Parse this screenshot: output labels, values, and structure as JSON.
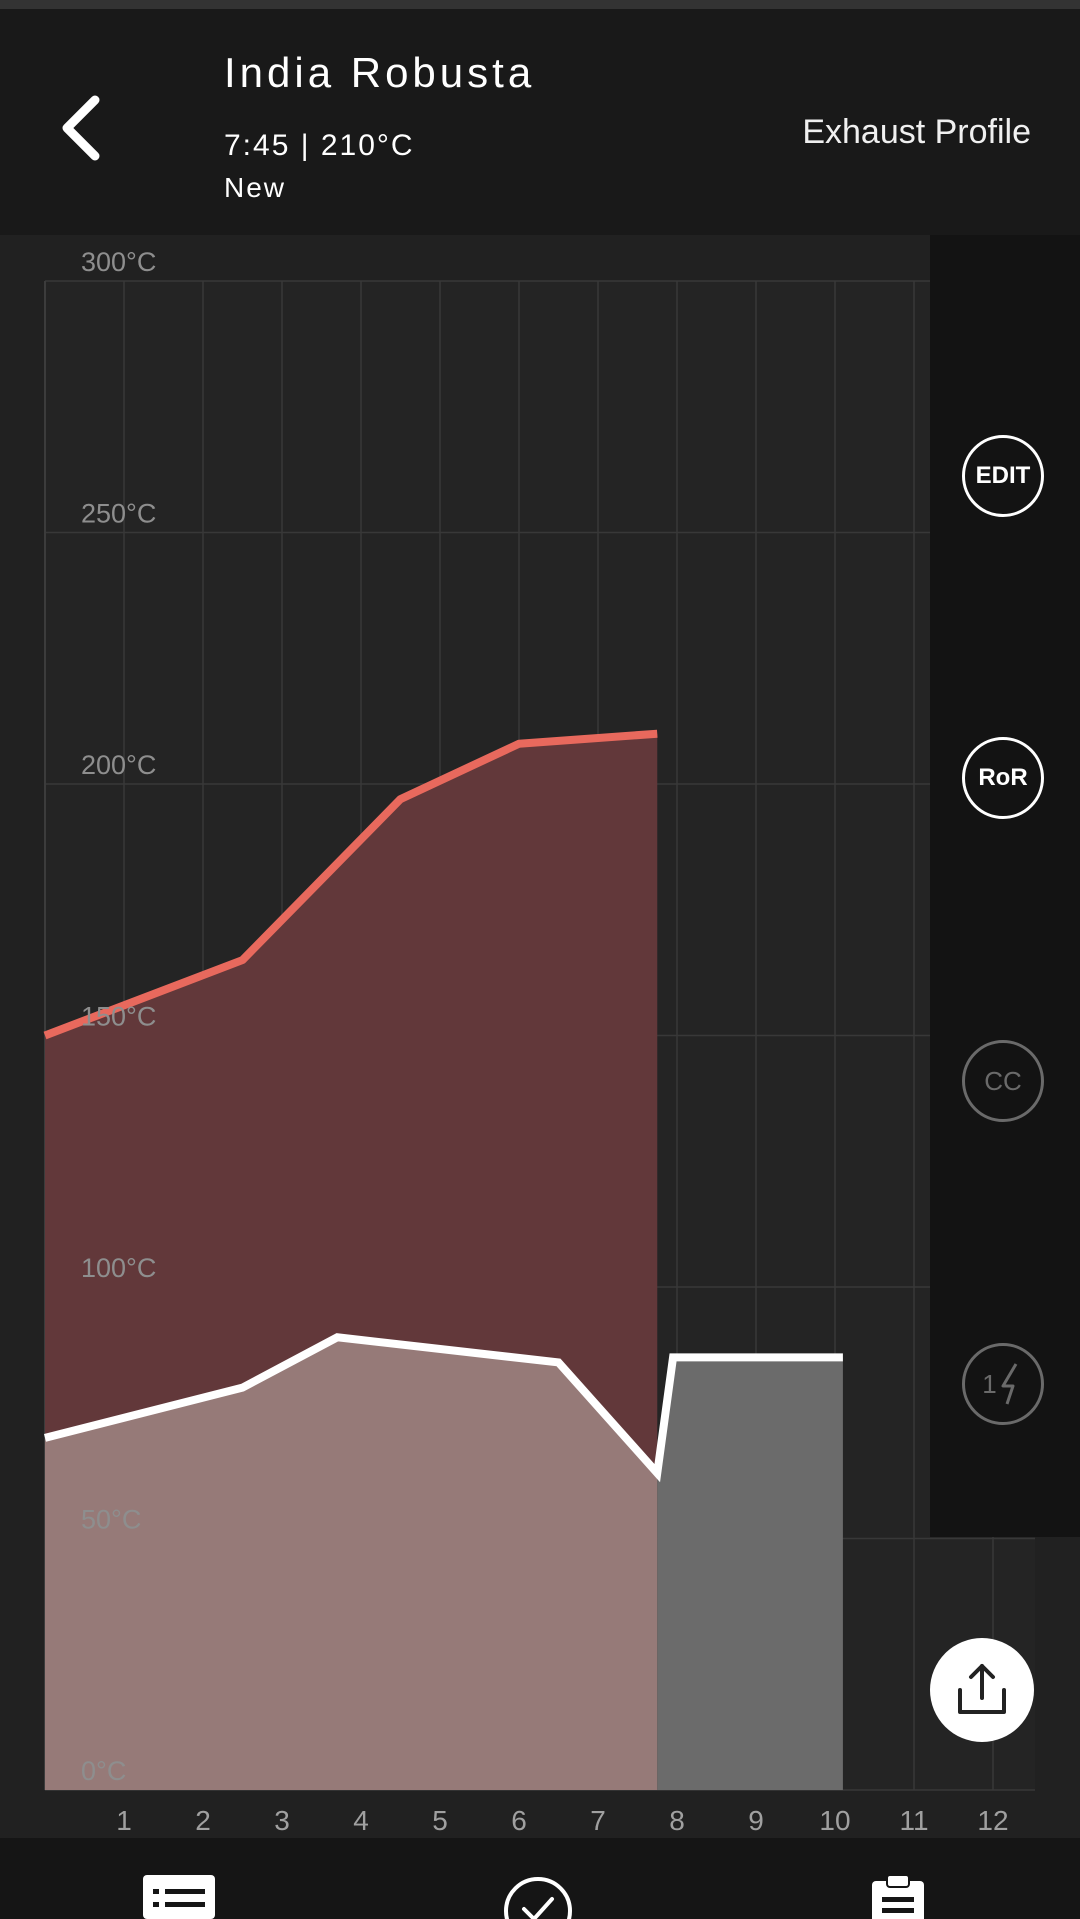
{
  "header": {
    "title": "India Robusta",
    "subtitle": "7:45 | 210°C",
    "status": "New",
    "profile_label": "Exhaust Profile",
    "back_icon": "chevron-left-icon"
  },
  "side_buttons": [
    {
      "label": "EDIT",
      "enabled": true
    },
    {
      "label": "RoR",
      "enabled": true
    },
    {
      "label": "CC",
      "enabled": false
    },
    {
      "label": "1",
      "icon": "lightning-icon",
      "enabled": false
    }
  ],
  "share_icon": "share-upload-icon",
  "bottom_nav": [
    {
      "icon": "list-icon"
    },
    {
      "icon": "check-circle-icon"
    },
    {
      "icon": "clipboard-icon"
    }
  ],
  "colors": {
    "background": "#212121",
    "bean_line": "#e8695d",
    "bean_fill": "#62383a",
    "exhaust_line": "#ffffff",
    "exhaust_fill_roasted": "#967a78",
    "exhaust_fill_future": "#6b6b6b"
  },
  "chart_data": {
    "type": "area",
    "xlim": [
      0,
      12.5
    ],
    "ylim": [
      0,
      300
    ],
    "x_ticks": [
      1,
      2,
      3,
      4,
      5,
      6,
      7,
      8,
      9,
      10,
      11,
      12
    ],
    "y_ticks": [
      0,
      50,
      100,
      150,
      200,
      250,
      300
    ],
    "y_tick_labels": [
      "0°C",
      "50°C",
      "100°C",
      "150°C",
      "200°C",
      "250°C",
      "300°C"
    ],
    "grid": true,
    "series": [
      {
        "x": [
          0,
          2.5,
          4.5,
          6,
          7.75
        ],
        "y": [
          150,
          165,
          197,
          208,
          210
        ]
      },
      {
        "x": [
          0,
          2.5,
          3.7,
          6.5,
          7.75,
          7.95,
          10.1
        ],
        "y": [
          70,
          80,
          90,
          85,
          63,
          86,
          86
        ]
      }
    ],
    "current_time": 7.75
  }
}
